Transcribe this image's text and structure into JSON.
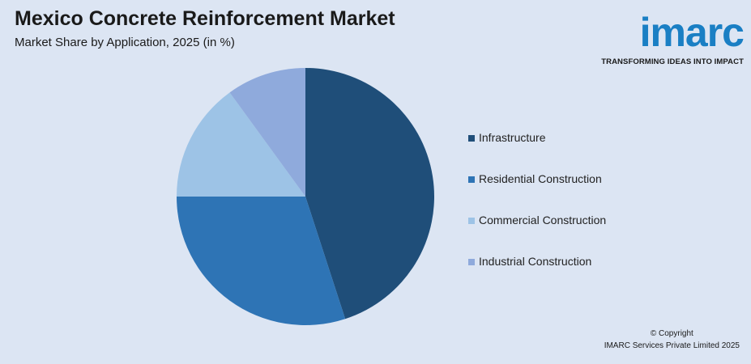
{
  "header": {
    "title": "Mexico Concrete Reinforcement Market",
    "subtitle": "Market Share by Application, 2025 (in %)"
  },
  "logo": {
    "word": "imarc",
    "tagline": "TRANSFORMING IDEAS INTO IMPACT",
    "color": "#1a7fc4"
  },
  "chart_data": {
    "type": "pie",
    "title": "Mexico Concrete Reinforcement Market",
    "subtitle": "Market Share by Application, 2025 (in %)",
    "start_angle": "12 o'clock, clockwise",
    "legend_position": "right",
    "categories": [
      "Infrastructure",
      "Residential Construction",
      "Commercial Construction",
      "Industrial Construction"
    ],
    "values": [
      45,
      30,
      15,
      10
    ],
    "colors": [
      "#1f4e79",
      "#2e74b5",
      "#9dc3e6",
      "#8faadc"
    ]
  },
  "footer": {
    "copyright_line1": "© Copyright",
    "copyright_line2": "IMARC Services Private Limited 2025"
  }
}
